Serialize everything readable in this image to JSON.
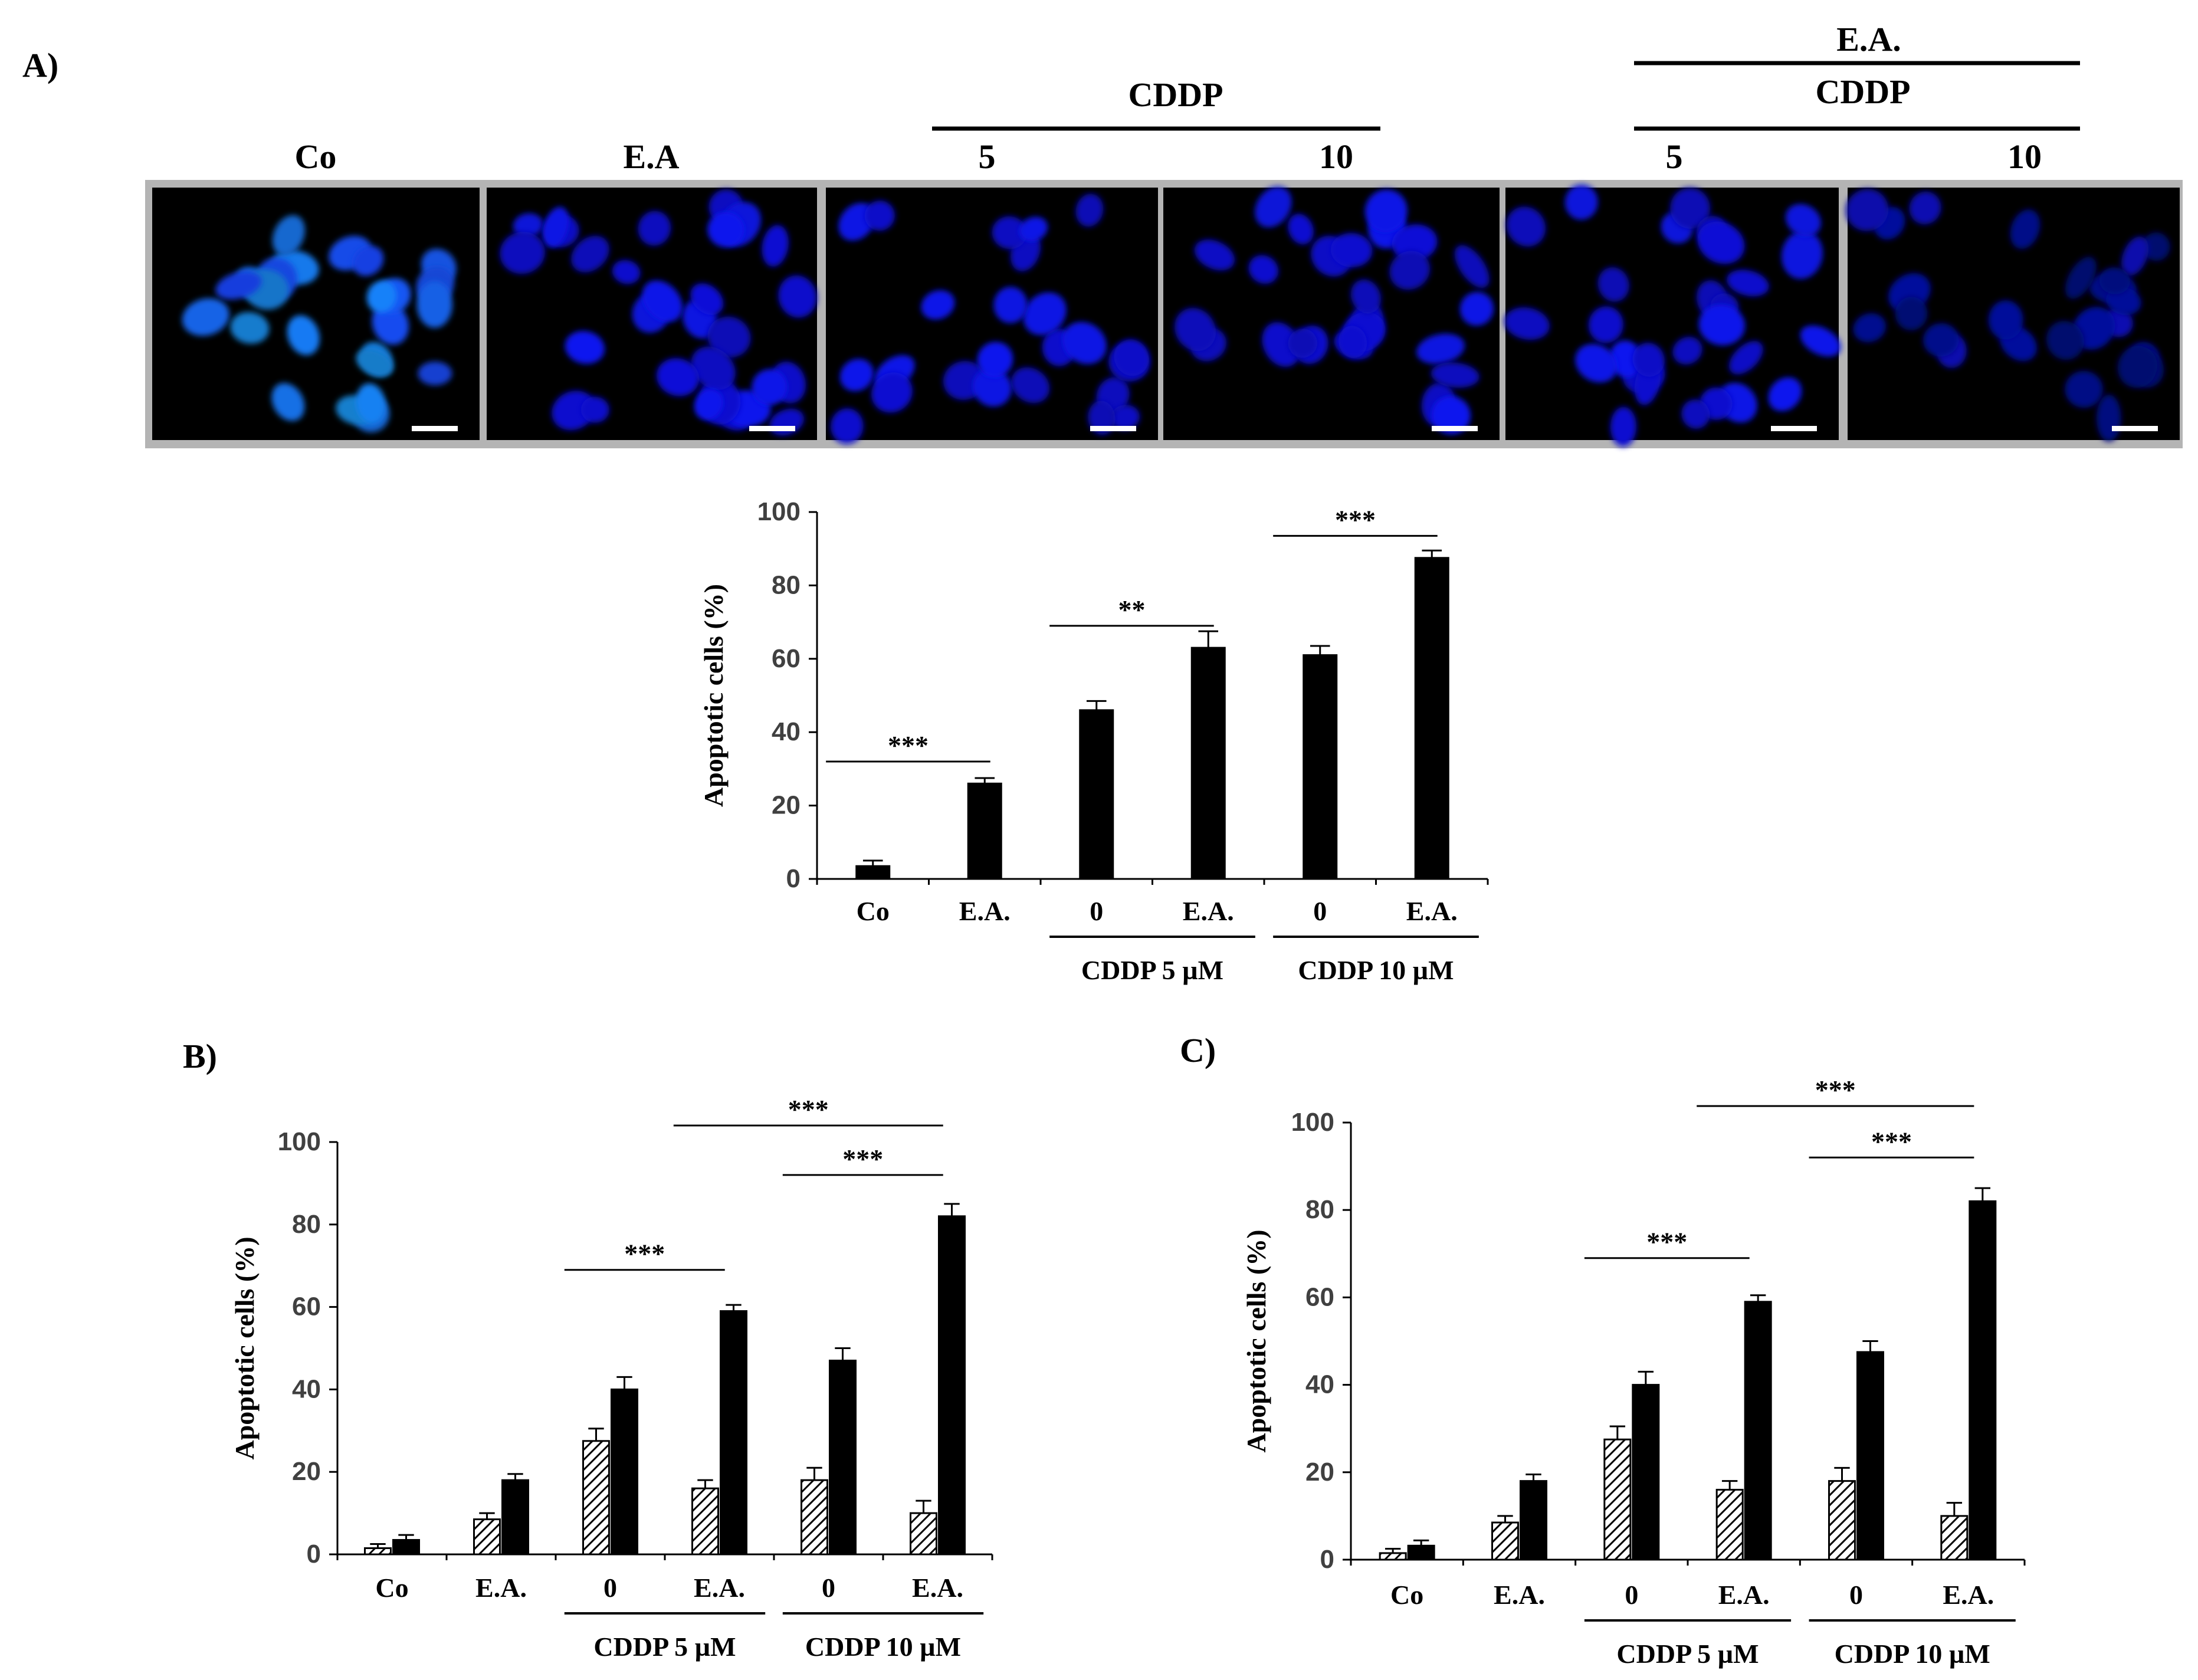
{
  "panels": {
    "a": "A)",
    "b": "B)",
    "c": "C)"
  },
  "micrograph": {
    "top_label": "E.A.",
    "cddp_label": "CDDP",
    "cddp_label_2": "CDDP",
    "lane_labels": [
      "Co",
      "E.A",
      "5",
      "10",
      "5",
      "10"
    ]
  },
  "chart_data": [
    {
      "id": "A",
      "type": "bar",
      "ylabel": "Apoptotic   cells (%)",
      "ylim": [
        0,
        100
      ],
      "yticks": [
        0,
        20,
        40,
        60,
        80,
        100
      ],
      "grid": false,
      "categories": [
        "Co",
        "E.A.",
        "0",
        "E.A.",
        "0",
        "E.A."
      ],
      "groups": [
        "CDDP 5 µM",
        "CDDP 10 µM"
      ],
      "series": [
        {
          "name": "apoptotic",
          "pattern": "solid",
          "values": [
            3.5,
            26,
            46,
            63,
            61,
            87.5
          ],
          "errors": [
            1.5,
            1.5,
            2.5,
            4.5,
            2.5,
            2
          ]
        }
      ],
      "significance": [
        {
          "from": 0,
          "to": 1,
          "label": "***"
        },
        {
          "from": 2,
          "to": 3,
          "label": "**"
        },
        {
          "from": 4,
          "to": 5,
          "label": "***"
        }
      ]
    },
    {
      "id": "B",
      "type": "bar",
      "ylabel": "Apoptotic   cells (%)",
      "ylim": [
        0,
        100
      ],
      "yticks": [
        0,
        20,
        40,
        60,
        80,
        100
      ],
      "grid": false,
      "categories": [
        "Co",
        "E.A.",
        "0",
        "E.A.",
        "0",
        "E.A."
      ],
      "groups": [
        "CDDP 5 µM",
        "CDDP 10 µM"
      ],
      "series": [
        {
          "name": "hatched",
          "pattern": "hatched",
          "values": [
            1.5,
            8.5,
            27.5,
            16,
            18,
            10
          ],
          "errors": [
            1,
            1.5,
            3,
            2,
            3,
            3
          ]
        },
        {
          "name": "solid",
          "pattern": "solid",
          "values": [
            3.5,
            18,
            40,
            59,
            47,
            82
          ],
          "errors": [
            1.2,
            1.5,
            3,
            1.5,
            3,
            3
          ]
        }
      ],
      "significance": [
        {
          "from": 2,
          "to": 3,
          "label": "***",
          "level": 1
        },
        {
          "from": 4,
          "to": 5,
          "label": "***",
          "level": 1
        },
        {
          "from": 3,
          "to": 5,
          "label": "***",
          "level": 2
        }
      ]
    },
    {
      "id": "C",
      "type": "bar",
      "ylabel": "Apoptotic   cells (%)",
      "ylim": [
        0,
        100
      ],
      "yticks": [
        0,
        20,
        40,
        60,
        80,
        100
      ],
      "grid": false,
      "categories": [
        "Co",
        "E.A.",
        "0",
        "E.A.",
        "0",
        "E.A."
      ],
      "groups": [
        "CDDP 5 µM",
        "CDDP 10 µM"
      ],
      "series": [
        {
          "name": "hatched",
          "pattern": "hatched",
          "values": [
            1.5,
            8.5,
            27.5,
            16,
            18,
            10
          ],
          "errors": [
            1,
            1.5,
            3,
            2,
            3,
            3
          ]
        },
        {
          "name": "solid",
          "pattern": "solid",
          "values": [
            3.2,
            18,
            40,
            59,
            47.5,
            82
          ],
          "errors": [
            1.2,
            1.5,
            3,
            1.5,
            2.5,
            3
          ]
        }
      ],
      "significance": [
        {
          "from": 2,
          "to": 3,
          "label": "***",
          "level": 1
        },
        {
          "from": 4,
          "to": 5,
          "label": "***",
          "level": 1
        },
        {
          "from": 3,
          "to": 5,
          "label": "***",
          "level": 2
        }
      ]
    }
  ]
}
